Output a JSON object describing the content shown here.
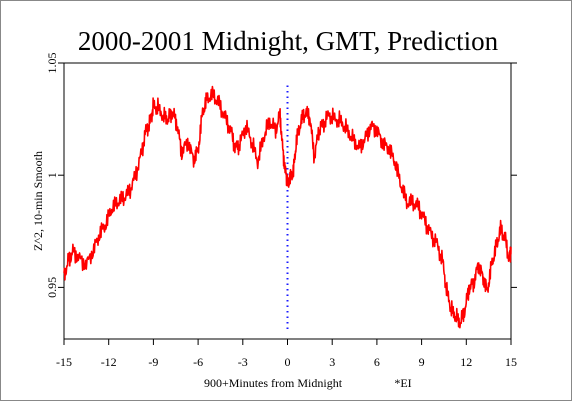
{
  "chart_data": {
    "type": "line",
    "title": "2000-2001 Midnight, GMT, Prediction",
    "xlabel": "900+Minutes from Midnight",
    "ylabel": "Z^2, 10-min Smooth",
    "annotation": "*EI",
    "xlim": [
      -15,
      15
    ],
    "ylim": [
      0.927,
      1.05
    ],
    "x_ticks": [
      -15,
      -12,
      -9,
      -6,
      -3,
      0,
      3,
      6,
      9,
      12,
      15
    ],
    "x_tick_labels": [
      "-15",
      "-12",
      "-9",
      "-6",
      "-3",
      "0",
      "3",
      "6",
      "9",
      "12",
      "15"
    ],
    "y_ticks": [
      0.95,
      1.0,
      1.05
    ],
    "y_tick_labels": [
      "0.95",
      "1",
      "1.05"
    ],
    "reference_line": {
      "x": 0,
      "style": "dotted",
      "color": "#1a1aff",
      "y_from": 0.93,
      "y_to": 1.04
    },
    "series": [
      {
        "color": "#ff0000",
        "x": [
          -15,
          -14.7,
          -14.4,
          -14.0,
          -13.5,
          -13.0,
          -12.6,
          -12.2,
          -11.8,
          -11.4,
          -11.0,
          -10.6,
          -10.2,
          -9.8,
          -9.5,
          -9.2,
          -9.0,
          -8.7,
          -8.3,
          -8.0,
          -7.7,
          -7.4,
          -7.1,
          -6.7,
          -6.3,
          -6.0,
          -5.7,
          -5.4,
          -5.0,
          -4.6,
          -4.2,
          -3.8,
          -3.5,
          -3.2,
          -2.8,
          -2.4,
          -2.0,
          -1.6,
          -1.2,
          -0.8,
          -0.5,
          -0.3,
          -0.1,
          0.0,
          0.2,
          0.4,
          0.6,
          0.9,
          1.2,
          1.5,
          1.8,
          2.1,
          2.4,
          2.8,
          3.2,
          3.6,
          4.0,
          4.4,
          4.8,
          5.2,
          5.6,
          6.0,
          6.4,
          6.8,
          7.2,
          7.6,
          8.0,
          8.4,
          8.8,
          9.2,
          9.6,
          10.0,
          10.4,
          10.7,
          11.0,
          11.3,
          11.6,
          11.9,
          12.2,
          12.5,
          12.8,
          13.1,
          13.4,
          13.7,
          14.0,
          14.3,
          14.6,
          14.9,
          15.0
        ],
        "y": [
          0.955,
          0.962,
          0.966,
          0.963,
          0.96,
          0.967,
          0.974,
          0.978,
          0.985,
          0.988,
          0.99,
          0.993,
          1.0,
          1.01,
          1.02,
          1.024,
          1.031,
          1.03,
          1.026,
          1.025,
          1.028,
          1.022,
          1.01,
          1.015,
          1.007,
          1.011,
          1.028,
          1.034,
          1.036,
          1.032,
          1.026,
          1.02,
          1.012,
          1.014,
          1.022,
          1.015,
          1.006,
          1.017,
          1.024,
          1.02,
          1.027,
          1.01,
          1.0,
          0.997,
          0.999,
          1.002,
          1.015,
          1.024,
          1.028,
          1.026,
          1.008,
          1.02,
          1.023,
          1.027,
          1.025,
          1.024,
          1.02,
          1.016,
          1.012,
          1.016,
          1.022,
          1.02,
          1.014,
          1.012,
          1.006,
          0.996,
          0.988,
          0.988,
          0.986,
          0.98,
          0.974,
          0.97,
          0.962,
          0.948,
          0.94,
          0.937,
          0.934,
          0.94,
          0.95,
          0.952,
          0.96,
          0.955,
          0.948,
          0.96,
          0.968,
          0.976,
          0.972,
          0.962,
          0.968
        ]
      }
    ],
    "grid": false
  }
}
